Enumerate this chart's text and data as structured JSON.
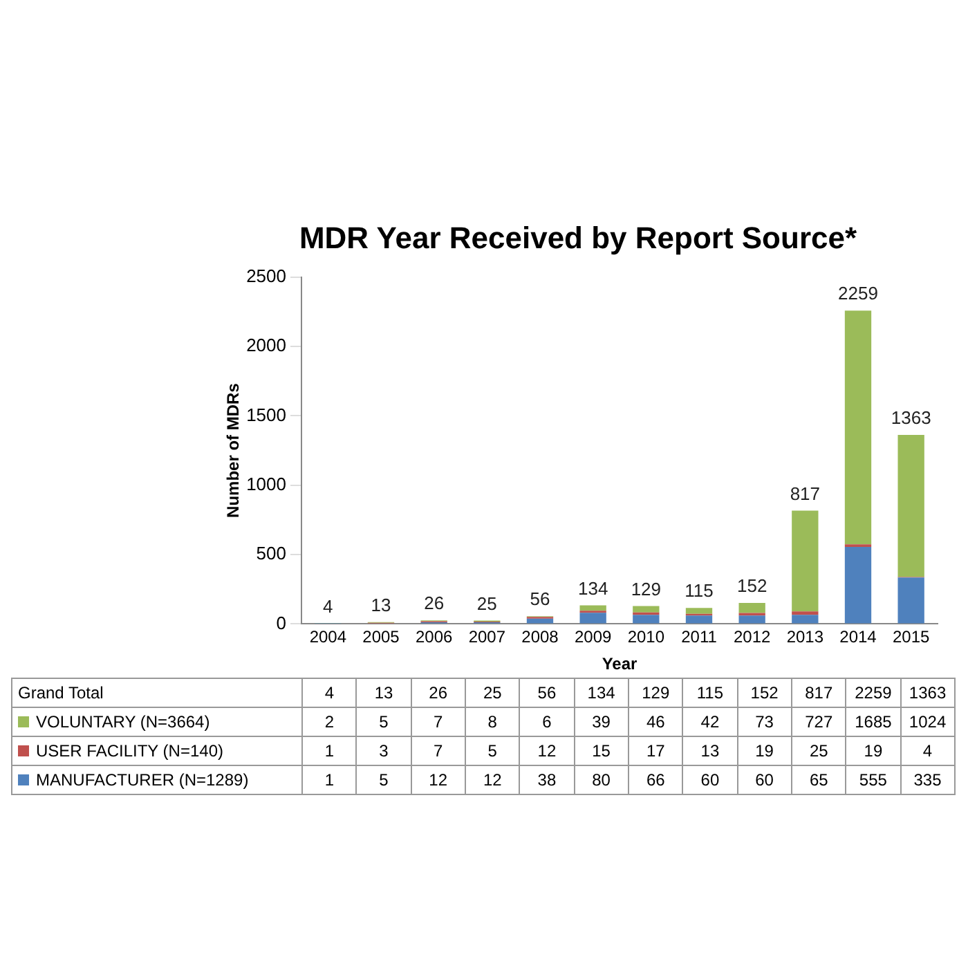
{
  "chart_data": {
    "type": "bar",
    "stacked": true,
    "title": "MDR Year Received by Report Source*",
    "xlabel": "Year",
    "ylabel": "Number of MDRs",
    "categories": [
      "2004",
      "2005",
      "2006",
      "2007",
      "2008",
      "2009",
      "2010",
      "2011",
      "2012",
      "2013",
      "2014",
      "2015"
    ],
    "series": [
      {
        "name": "MANUFACTURER (N=1289)",
        "color": "#4f81bd",
        "values": [
          1,
          5,
          12,
          12,
          38,
          80,
          66,
          60,
          60,
          65,
          555,
          335
        ]
      },
      {
        "name": "USER FACILITY (N=140)",
        "color": "#c0504d",
        "values": [
          1,
          3,
          7,
          5,
          12,
          15,
          17,
          13,
          19,
          25,
          19,
          4
        ]
      },
      {
        "name": "VOLUNTARY (N=3664)",
        "color": "#9bbb59",
        "values": [
          2,
          5,
          7,
          8,
          6,
          39,
          46,
          42,
          73,
          727,
          1685,
          1024
        ]
      }
    ],
    "totals": [
      "4",
      "13",
      "26",
      "25",
      "56",
      "134",
      "129",
      "115",
      "152",
      "817",
      "2259",
      "1363"
    ],
    "annotations": [
      "Grand Total"
    ],
    "ylim": [
      0,
      2500
    ],
    "yticks": [
      0,
      500,
      1000,
      1500,
      2000,
      2500
    ],
    "grid": false,
    "legend": "bottom",
    "data_labels": true
  }
}
